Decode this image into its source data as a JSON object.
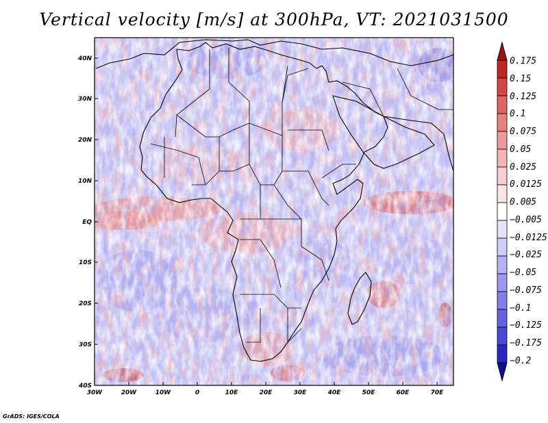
{
  "title": "Vertical velocity [m/s] at 300hPa, VT: 2021031500",
  "credit": "GrADS: IGES/COLA",
  "map": {
    "lon_labels": [
      "30W",
      "20W",
      "10W",
      "0",
      "10E",
      "20E",
      "30E",
      "40E",
      "50E",
      "60E",
      "70E"
    ],
    "lat_labels": [
      "40N",
      "30N",
      "20N",
      "10N",
      "EQ",
      "10S",
      "20S",
      "30S",
      "40S"
    ]
  },
  "colorbar": {
    "labels": [
      "0.175",
      "0.15",
      "0.125",
      "0.1",
      "0.075",
      "0.05",
      "0.025",
      "0.0125",
      "0.005",
      "−0.005",
      "−0.0125",
      "−0.025",
      "−0.05",
      "−0.075",
      "−0.1",
      "−0.125",
      "−0.175",
      "−0.2"
    ],
    "colors": [
      "#a01010",
      "#c02828",
      "#d44848",
      "#e06464",
      "#e88080",
      "#ee9a9a",
      "#f4b4b4",
      "#f8cece",
      "#fbe4e4",
      "#ffffff",
      "#e4e4fb",
      "#cecef8",
      "#b4b4f4",
      "#9a9aee",
      "#8080e8",
      "#6464e0",
      "#4848d4",
      "#2828c0",
      "#10109a"
    ]
  },
  "chart_data": {
    "type": "heatmap",
    "title": "Vertical velocity [m/s] at 300hPa, VT: 2021031500",
    "variable": "Vertical velocity",
    "units": "m/s",
    "level": "300hPa",
    "valid_time": "2021031500",
    "x_range": [
      -30,
      75
    ],
    "y_range": [
      -40,
      45
    ],
    "levels": [
      -0.2,
      -0.175,
      -0.125,
      -0.1,
      -0.075,
      -0.05,
      -0.025,
      -0.0125,
      -0.005,
      0.005,
      0.0125,
      0.025,
      0.05,
      0.075,
      0.1,
      0.125,
      0.15,
      0.175
    ]
  }
}
